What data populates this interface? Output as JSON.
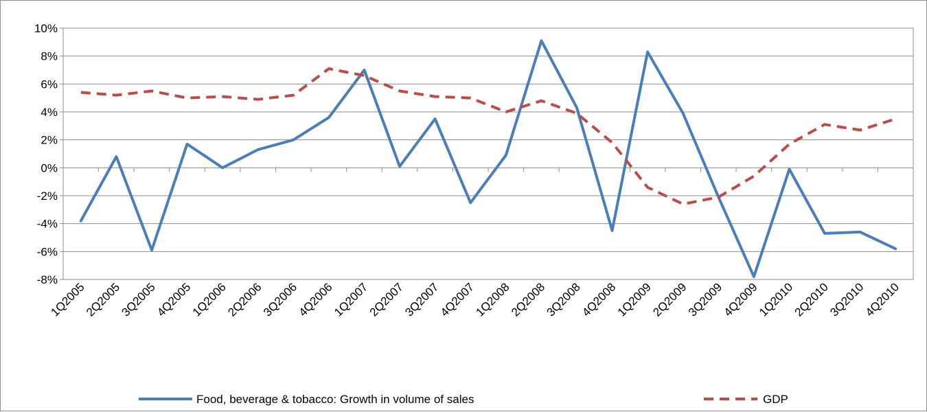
{
  "chart_data": {
    "type": "line",
    "title": "",
    "xlabel": "",
    "ylabel": "",
    "categories": [
      "1Q2005",
      "2Q2005",
      "3Q2005",
      "4Q2005",
      "1Q2006",
      "2Q2006",
      "3Q2006",
      "4Q2006",
      "1Q2007",
      "2Q2007",
      "3Q2007",
      "4Q2007",
      "1Q2008",
      "2Q2008",
      "3Q2008",
      "4Q2008",
      "1Q2009",
      "2Q2009",
      "3Q2009",
      "4Q2009",
      "1Q2010",
      "2Q2010",
      "3Q2010",
      "4Q2010"
    ],
    "ylim": [
      -8,
      10
    ],
    "yticks": [
      -8,
      -6,
      -4,
      -2,
      0,
      2,
      4,
      6,
      8,
      10
    ],
    "ytick_labels": [
      "-8%",
      "-6%",
      "-4%",
      "-2%",
      "0%",
      "2%",
      "4%",
      "6%",
      "8%",
      "10%"
    ],
    "grid": true,
    "legend_position": "bottom",
    "series": [
      {
        "name": "Food, beverage & tobacco: Growth in volume of sales",
        "color": "#4a7ebb",
        "style": "solid",
        "values": [
          -3.8,
          0.8,
          -5.9,
          1.7,
          0.0,
          1.3,
          2.0,
          3.6,
          7.0,
          0.1,
          3.5,
          -2.5,
          0.9,
          9.1,
          4.3,
          -4.5,
          8.3,
          3.9,
          -2.1,
          -7.8,
          -0.1,
          -4.7,
          -4.6,
          -5.8
        ]
      },
      {
        "name": "GDP",
        "color": "#be4b48",
        "style": "dashed",
        "values": [
          5.4,
          5.2,
          5.5,
          5.0,
          5.1,
          4.9,
          5.2,
          7.1,
          6.6,
          5.5,
          5.1,
          5.0,
          4.0,
          4.8,
          3.9,
          1.8,
          -1.4,
          -2.6,
          -2.1,
          -0.6,
          1.7,
          3.1,
          2.7,
          3.5
        ]
      }
    ]
  }
}
